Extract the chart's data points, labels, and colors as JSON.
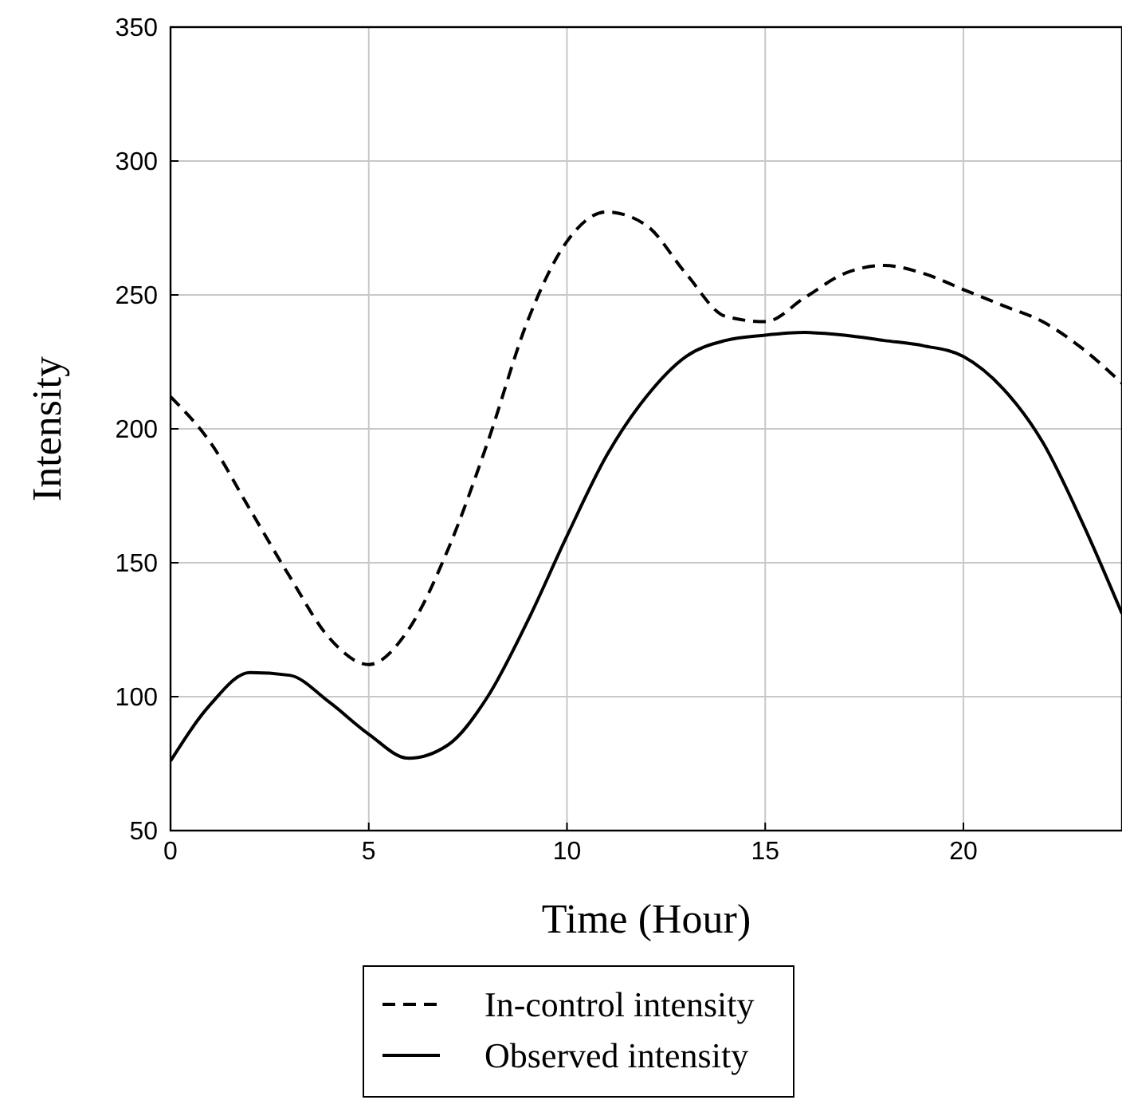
{
  "chart_data": {
    "type": "line",
    "xlabel": "Time (Hour)",
    "ylabel": "Intensity",
    "x": [
      0,
      1,
      2,
      3,
      4,
      5,
      6,
      7,
      8,
      9,
      10,
      11,
      12,
      13,
      14,
      15,
      16,
      17,
      18,
      19,
      20,
      21,
      22,
      23,
      24
    ],
    "series": [
      {
        "name": "In-control intensity",
        "color": "#000000",
        "line_style": "dashed",
        "values": [
          212,
          195,
          170,
          145,
          122,
          112,
          125,
          155,
          195,
          240,
          270,
          281,
          276,
          258,
          242,
          240,
          249,
          258,
          261,
          258,
          252,
          246,
          240,
          230,
          217
        ]
      },
      {
        "name": "Observed intensity",
        "color": "#000000",
        "line_style": "solid",
        "values": [
          76,
          97,
          109,
          108,
          98,
          86,
          77,
          82,
          100,
          128,
          160,
          190,
          212,
          227,
          233,
          235,
          236,
          235,
          233,
          231,
          227,
          215,
          195,
          165,
          131
        ]
      }
    ],
    "xlim": [
      0,
      24
    ],
    "xticks": [
      0,
      5,
      10,
      15,
      20
    ],
    "ylim": [
      50,
      350
    ],
    "yticks": [
      50,
      100,
      150,
      200,
      250,
      300,
      350
    ],
    "grid": true,
    "legend": "bottom",
    "marker": "none"
  }
}
